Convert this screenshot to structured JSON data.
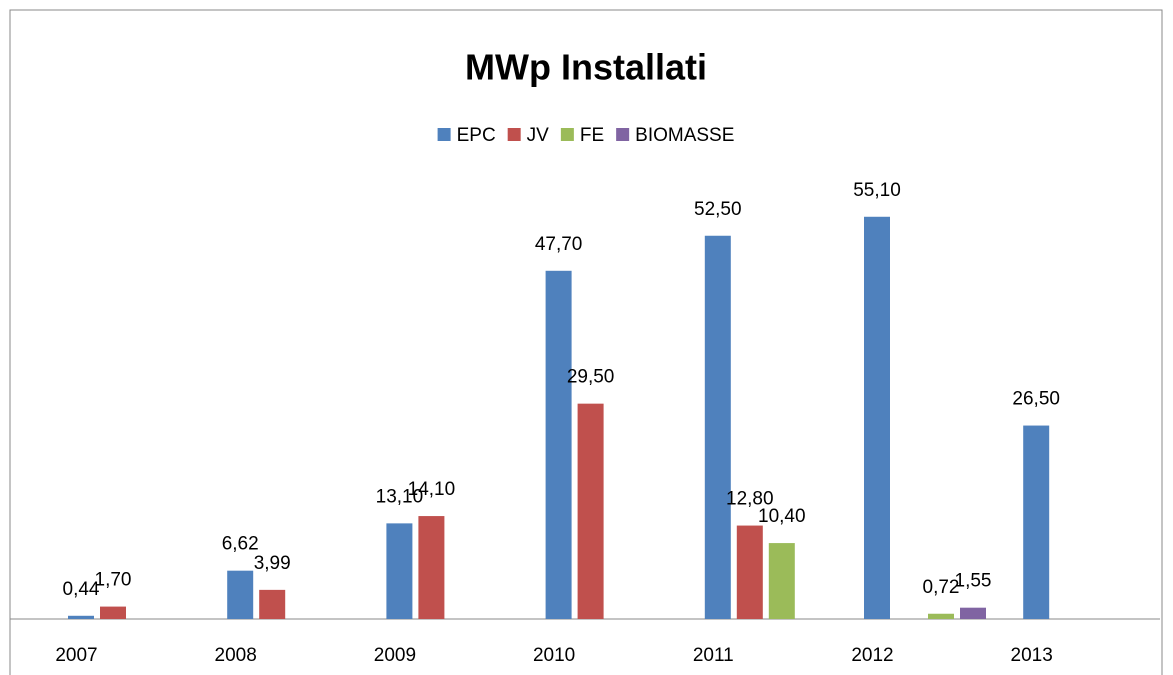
{
  "chart_data": {
    "type": "bar",
    "title": "MWp Installati",
    "categories": [
      "2007",
      "2008",
      "2009",
      "2010",
      "2011",
      "2012",
      "2013"
    ],
    "series": [
      {
        "name": "EPC",
        "color": "#4f81bd",
        "values": [
          0.44,
          6.62,
          13.1,
          47.7,
          52.5,
          55.1,
          26.5
        ],
        "value_labels": [
          "0,44",
          "6,62",
          "13,10",
          "47,70",
          "52,50",
          "55,10",
          "26,50"
        ]
      },
      {
        "name": "JV",
        "color": "#c0504d",
        "values": [
          1.7,
          3.99,
          14.1,
          29.5,
          12.8,
          null,
          null
        ],
        "value_labels": [
          "1,70",
          "3,99",
          "14,10",
          "29,50",
          "12,80",
          null,
          null
        ]
      },
      {
        "name": "FE",
        "color": "#9bbb59",
        "values": [
          null,
          null,
          null,
          null,
          10.4,
          0.72,
          null
        ],
        "value_labels": [
          null,
          null,
          null,
          null,
          "10,40",
          "0,72",
          null
        ]
      },
      {
        "name": "BIOMASSE",
        "color": "#8064a2",
        "values": [
          null,
          null,
          null,
          null,
          null,
          1.55,
          null
        ],
        "value_labels": [
          null,
          null,
          null,
          null,
          null,
          "1,55",
          null
        ]
      }
    ],
    "ylim": [
      0,
      60
    ],
    "legend": "top"
  }
}
